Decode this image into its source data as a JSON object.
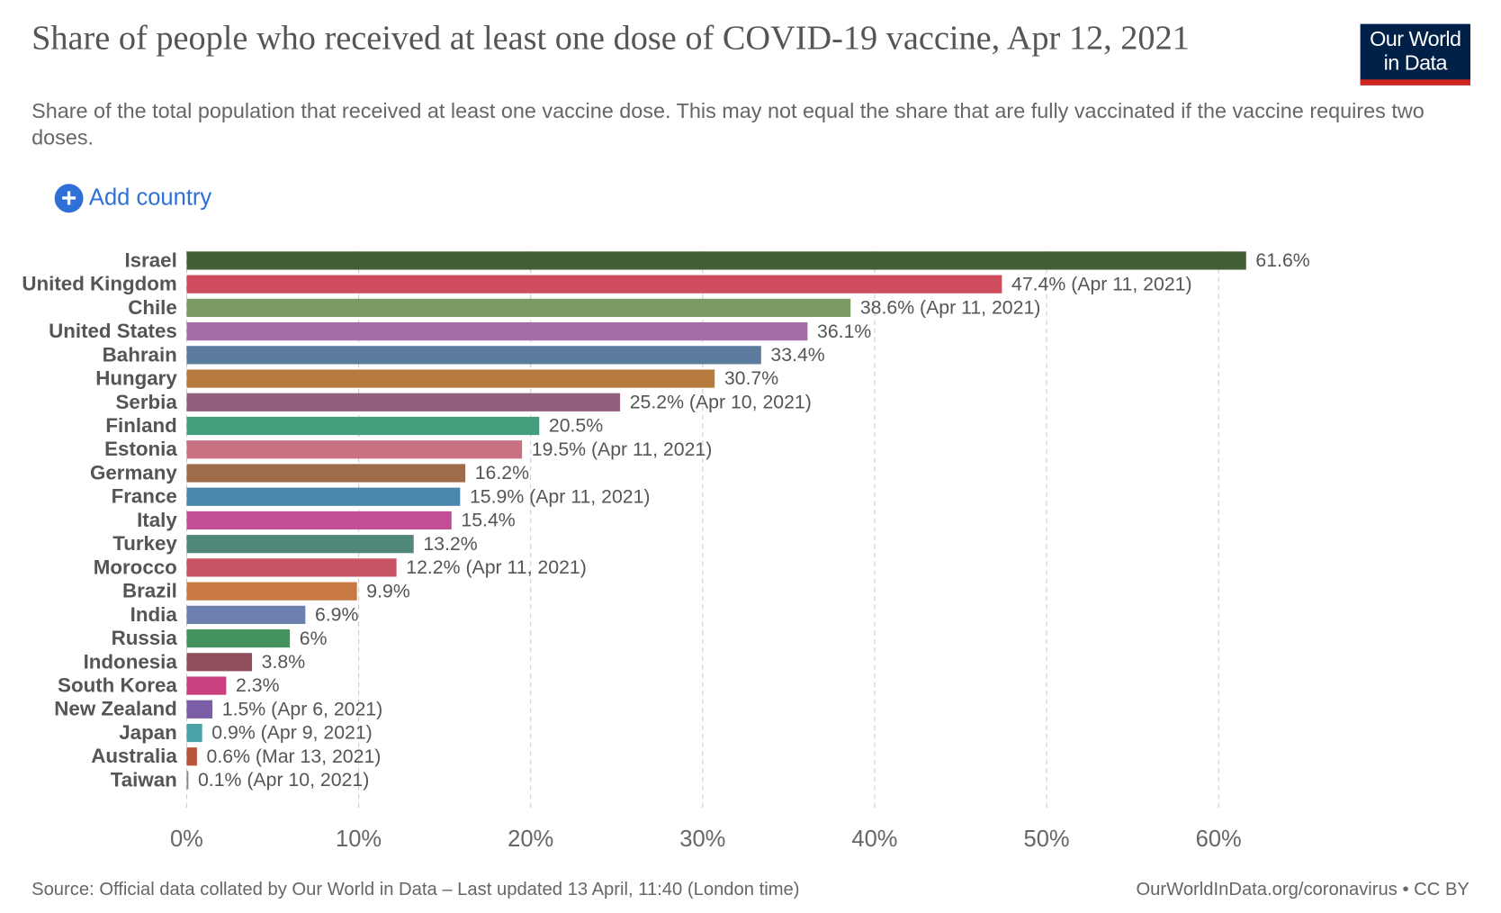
{
  "header": {
    "title": "Share of people who received at least one dose of COVID-19 vaccine, Apr 12, 2021",
    "subtitle": "Share of the total population that received at least one vaccine dose. This may not equal the share that are fully vaccinated if the vaccine requires two doses.",
    "logo": [
      "Our World",
      "in Data"
    ],
    "add_button": "Add country"
  },
  "chart_data": {
    "type": "hbar",
    "categories": [
      "Israel",
      "United Kingdom",
      "Chile",
      "United States",
      "Bahrain",
      "Hungary",
      "Serbia",
      "Finland",
      "Estonia",
      "Germany",
      "France",
      "Italy",
      "Turkey",
      "Morocco",
      "Brazil",
      "India",
      "Russia",
      "Indonesia",
      "South Korea",
      "New Zealand",
      "Japan",
      "Australia",
      "Taiwan"
    ],
    "values": [
      61.6,
      47.4,
      38.6,
      36.1,
      33.4,
      30.7,
      25.2,
      20.5,
      19.5,
      16.2,
      15.9,
      15.4,
      13.2,
      12.2,
      9.9,
      6.9,
      6,
      3.8,
      2.3,
      1.5,
      0.9,
      0.6,
      0.1
    ],
    "value_labels": [
      "61.6%",
      "47.4% (Apr 11, 2021)",
      "38.6% (Apr 11, 2021)",
      "36.1%",
      "33.4%",
      "30.7%",
      "25.2% (Apr 10, 2021)",
      "20.5%",
      "19.5% (Apr 11, 2021)",
      "16.2%",
      "15.9% (Apr 11, 2021)",
      "15.4%",
      "13.2%",
      "12.2% (Apr 11, 2021)",
      "9.9%",
      "6.9%",
      "6%",
      "3.8%",
      "2.3%",
      "1.5% (Apr 6, 2021)",
      "0.9% (Apr 9, 2021)",
      "0.6% (Mar 13, 2021)",
      "0.1% (Apr 10, 2021)"
    ],
    "colors": [
      "#435f38",
      "#cf4b5e",
      "#7a9a63",
      "#a56daa",
      "#5a7b9b",
      "#b87b3f",
      "#935f7f",
      "#459e7b",
      "#c77183",
      "#9e6c4b",
      "#4b86ad",
      "#c14f96",
      "#52887b",
      "#c85363",
      "#c87943",
      "#6c7fae",
      "#44925e",
      "#8f4f5b",
      "#c9417f",
      "#7b5da6",
      "#4aa1a8",
      "#b8553a",
      "#888888"
    ],
    "xlim": [
      0,
      62
    ],
    "xticks": [
      {
        "value": 0,
        "label": "0%"
      },
      {
        "value": 10,
        "label": "10%"
      },
      {
        "value": 20,
        "label": "20%"
      },
      {
        "value": 30,
        "label": "30%"
      },
      {
        "value": 40,
        "label": "40%"
      },
      {
        "value": 50,
        "label": "50%"
      },
      {
        "value": 60,
        "label": "60%"
      }
    ],
    "grid": true
  },
  "footer": {
    "source": "Source: Official data collated by Our World in Data – Last updated 13 April, 11:40 (London time)",
    "credit": "OurWorldInData.org/coronavirus • CC BY"
  }
}
